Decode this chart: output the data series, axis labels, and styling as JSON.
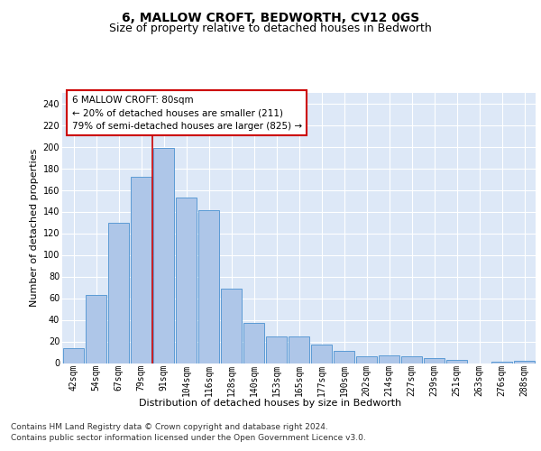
{
  "title": "6, MALLOW CROFT, BEDWORTH, CV12 0GS",
  "subtitle": "Size of property relative to detached houses in Bedworth",
  "xlabel": "Distribution of detached houses by size in Bedworth",
  "ylabel": "Number of detached properties",
  "footer_line1": "Contains HM Land Registry data © Crown copyright and database right 2024.",
  "footer_line2": "Contains public sector information licensed under the Open Government Licence v3.0.",
  "annotation_line1": "6 MALLOW CROFT: 80sqm",
  "annotation_line2": "← 20% of detached houses are smaller (211)",
  "annotation_line3": "79% of semi-detached houses are larger (825) →",
  "bar_labels": [
    "42sqm",
    "54sqm",
    "67sqm",
    "79sqm",
    "91sqm",
    "104sqm",
    "116sqm",
    "128sqm",
    "140sqm",
    "153sqm",
    "165sqm",
    "177sqm",
    "190sqm",
    "202sqm",
    "214sqm",
    "227sqm",
    "239sqm",
    "251sqm",
    "263sqm",
    "276sqm",
    "288sqm"
  ],
  "bar_values": [
    14,
    63,
    130,
    172,
    199,
    153,
    141,
    69,
    37,
    25,
    25,
    17,
    11,
    6,
    7,
    6,
    5,
    3,
    0,
    1,
    2
  ],
  "bar_color": "#aec6e8",
  "bar_edge_color": "#5b9bd5",
  "red_line_x": 3.5,
  "ylim": [
    0,
    250
  ],
  "yticks": [
    0,
    20,
    40,
    60,
    80,
    100,
    120,
    140,
    160,
    180,
    200,
    220,
    240
  ],
  "bg_color": "#ffffff",
  "plot_bg_color": "#dde8f7",
  "grid_color": "#ffffff",
  "red_line_color": "#cc0000",
  "annotation_box_color": "#cc0000",
  "title_fontsize": 10,
  "subtitle_fontsize": 9,
  "axis_label_fontsize": 8,
  "tick_fontsize": 7,
  "annotation_fontsize": 7.5,
  "footer_fontsize": 6.5
}
